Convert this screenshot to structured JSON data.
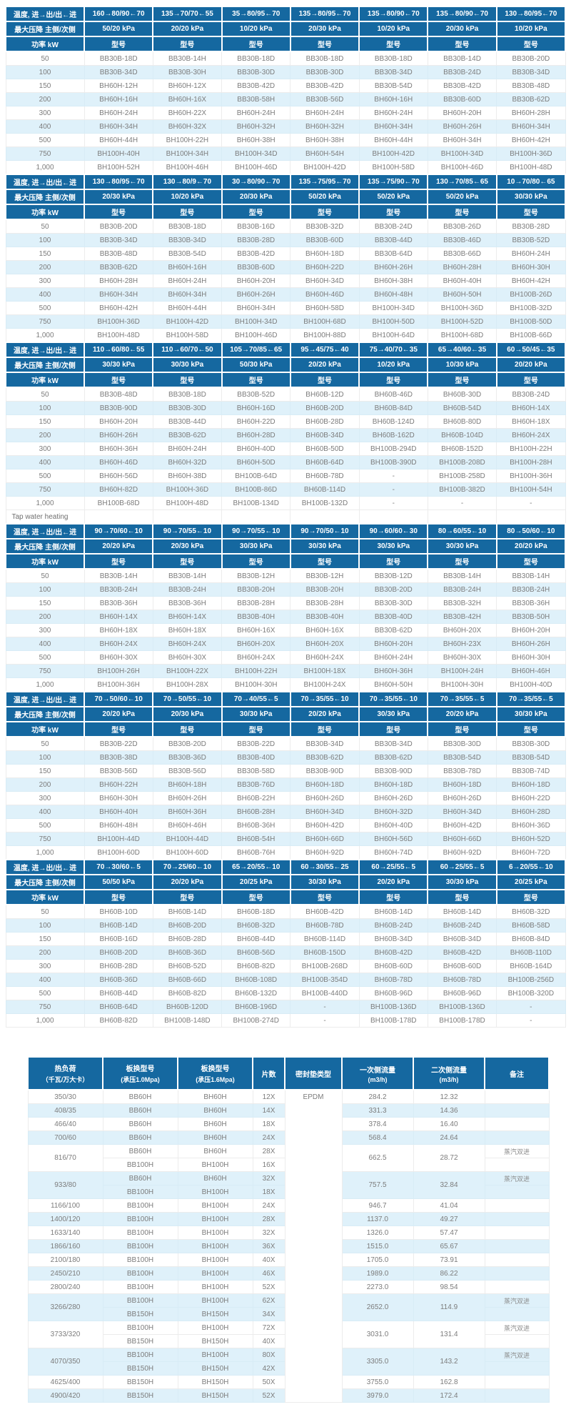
{
  "labels": {
    "temp_header": "温度, 进→出/出←进",
    "pressure_header": "最大压降 主侧/次侧",
    "power_header": "功率 kW",
    "model_header": "型号",
    "tap_water": "Tap water heating",
    "dash": "-"
  },
  "colors": {
    "header_bg": "#1568A0",
    "row_alt_bg": "#DFF1FA",
    "body_text": "#7C7C7C",
    "header_text": "#FFFFFF"
  },
  "power_rows": [
    "50",
    "100",
    "150",
    "200",
    "300",
    "400",
    "500",
    "750",
    "1,000"
  ],
  "sections": [
    {
      "temps": [
        "160→80/90←70",
        "135→70/70←55",
        "35→80/95←70",
        "135→80/95←70",
        "135→80/90←70",
        "135→80/90←70",
        "130→80/95←70"
      ],
      "pressures": [
        "50/20 kPa",
        "20/20 kPa",
        "10/20 kPa",
        "20/30 kPa",
        "10/20 kPa",
        "20/30 kPa",
        "10/20 kPa"
      ],
      "rows": [
        [
          "BB30B-18D",
          "BB30B-14H",
          "BB30B-18D",
          "BB30B-18D",
          "BB30B-18D",
          "BB30B-14D",
          "BB30B-20D"
        ],
        [
          "BB30B-34D",
          "BB30B-30H",
          "BB30B-30D",
          "BB30B-30D",
          "BB30B-34D",
          "BB30B-24D",
          "BB30B-34D"
        ],
        [
          "BH60H-12H",
          "BH60H-12X",
          "BB30B-42D",
          "BB30B-42D",
          "BB30B-54D",
          "BB30B-42D",
          "BB30B-48D"
        ],
        [
          "BH60H-16H",
          "BH60H-16X",
          "BB30B-58H",
          "BB30B-56D",
          "BH60H-16H",
          "BB30B-60D",
          "BB30B-62D"
        ],
        [
          "BH60H-24H",
          "BH60H-22X",
          "BH60H-24H",
          "BH60H-24H",
          "BH60H-24H",
          "BH60H-20H",
          "BH60H-28H"
        ],
        [
          "BH60H-34H",
          "BH60H-32X",
          "BH60H-32H",
          "BH60H-32H",
          "BH60H-34H",
          "BH60H-26H",
          "BH60H-34H"
        ],
        [
          "BH60H-44H",
          "BH100H-22H",
          "BH60H-38H",
          "BH60H-38H",
          "BH60H-44H",
          "BH60H-34H",
          "BH60H-42H"
        ],
        [
          "BH100H-40H",
          "BH100H-34H",
          "BH100H-34D",
          "BH60H-54H",
          "BH100H-42D",
          "BH100H-34D",
          "BH100H-36D"
        ],
        [
          "BH100H-52H",
          "BH100H-46H",
          "BH100H-46D",
          "BH100H-42D",
          "BH100H-58D",
          "BH100H-46D",
          "BH100H-48D"
        ]
      ]
    },
    {
      "temps": [
        "130→80/95←70",
        "130→80/9←70",
        "30→80/90←70",
        "135→75/95←70",
        "135→75/90←70",
        "130→70/85←65",
        "10→70/80←65"
      ],
      "pressures": [
        "20/30 kPa",
        "10/20 kPa",
        "20/30 kPa",
        "50/20 kPa",
        "50/20 kPa",
        "50/20 kPa",
        "30/30 kPa"
      ],
      "rows": [
        [
          "BB30B-20D",
          "BB30B-18D",
          "BB30B-16D",
          "BB30B-32D",
          "BB30B-24D",
          "BB30B-26D",
          "BB30B-28D"
        ],
        [
          "BB30B-34D",
          "BB30B-34D",
          "BB30B-28D",
          "BB30B-60D",
          "BB30B-44D",
          "BB30B-46D",
          "BB30B-52D"
        ],
        [
          "BB30B-48D",
          "BB30B-54D",
          "BB30B-42D",
          "BH60H-18D",
          "BB30B-64D",
          "BB30B-66D",
          "BH60H-24H"
        ],
        [
          "BB30B-62D",
          "BH60H-16H",
          "BB30B-60D",
          "BH60H-22D",
          "BH60H-26H",
          "BH60H-28H",
          "BH60H-30H"
        ],
        [
          "BH60H-28H",
          "BH60H-24H",
          "BH60H-20H",
          "BH60H-34D",
          "BH60H-38H",
          "BH60H-40H",
          "BH60H-42H"
        ],
        [
          "BH60H-34H",
          "BH60H-34H",
          "BH60H-26H",
          "BH60H-46D",
          "BH60H-48H",
          "BH60H-50H",
          "BH100B-26D"
        ],
        [
          "BH60H-42H",
          "BH60H-44H",
          "BH60H-34H",
          "BH60H-58D",
          "BH100H-34D",
          "BH100H-36D",
          "BH100B-32D"
        ],
        [
          "BH100H-36D",
          "BH100H-42D",
          "BH100H-34D",
          "BH100H-68D",
          "BH100H-50D",
          "BH100H-52D",
          "BH100B-50D"
        ],
        [
          "BH100H-48D",
          "BH100H-58D",
          "BH100H-46D",
          "BH100H-88D",
          "BH100H-64D",
          "BH100H-68D",
          "BH100B-66D"
        ]
      ]
    },
    {
      "temps": [
        "110→60/80←55",
        "110→60/70←50",
        "105→70/85←65",
        "95→45/75←40",
        "75→40/70←35",
        "65→40/60←35",
        "60→50/45←35"
      ],
      "pressures": [
        "30/30 kPa",
        "30/30 kPa",
        "50/30 kPa",
        "20/20 kPa",
        "10/20 kPa",
        "10/30 kPa",
        "20/20 kPa"
      ],
      "rows": [
        [
          "BB30B-48D",
          "BB30B-18D",
          "BB30B-52D",
          "BH60B-12D",
          "BH60B-46D",
          "BH60B-30D",
          "BB30B-24D"
        ],
        [
          "BB30B-90D",
          "BB30B-30D",
          "BH60H-16D",
          "BH60B-20D",
          "BH60B-84D",
          "BH60B-54D",
          "BH60H-14X"
        ],
        [
          "BH60H-20H",
          "BB30B-44D",
          "BH60H-22D",
          "BH60B-28D",
          "BH60B-124D",
          "BH60B-80D",
          "BH60H-18X"
        ],
        [
          "BH60H-26H",
          "BB30B-62D",
          "BH60H-28D",
          "BH60B-34D",
          "BH60B-162D",
          "BH60B-104D",
          "BH60H-24X"
        ],
        [
          "BH60H-36H",
          "BH60H-24H",
          "BH60H-40D",
          "BH60B-50D",
          "BH100B-294D",
          "BH60B-152D",
          "BH100H-22H"
        ],
        [
          "BH60H-46D",
          "BH60H-32D",
          "BH60H-50D",
          "BH60B-64D",
          "BH100B-390D",
          "BH100B-208D",
          "BH100H-28H"
        ],
        [
          "BH60H-56D",
          "BH60H-38D",
          "BH100B-64D",
          "BH60B-78D",
          "-",
          "BH100B-258D",
          "BH100H-36H"
        ],
        [
          "BH60H-82D",
          "BH100H-36D",
          "BH100B-86D",
          "BH60B-114D",
          "-",
          "BH100B-382D",
          "BH100H-54H"
        ],
        [
          "BH100B-68D",
          "BH100H-48D",
          "BH100B-134D",
          "BH100B-132D",
          "-",
          "-",
          "-"
        ]
      ]
    },
    {
      "temps": [
        "90→70/60←10",
        "90→70/55←10",
        "90→70/55←10",
        "90→70/50←10",
        "90→60/60←30",
        "80→60/55←10",
        "80→50/60←10"
      ],
      "pressures": [
        "20/20 kPa",
        "20/30 kPa",
        "30/30 kPa",
        "30/30 kPa",
        "30/30 kPa",
        "30/30 kPa",
        "20/20 kPa"
      ],
      "rows": [
        [
          "BB30B-14H",
          "BB30B-14H",
          "BB30B-12H",
          "BB30B-12H",
          "BB30B-12D",
          "BB30B-14H",
          "BB30B-14H"
        ],
        [
          "BB30B-24H",
          "BB30B-24H",
          "BB30B-20H",
          "BB30B-20H",
          "BB30B-20D",
          "BB30B-24H",
          "BB30B-24H"
        ],
        [
          "BB30B-36H",
          "BB30B-36H",
          "BB30B-28H",
          "BB30B-28H",
          "BB30B-30D",
          "BB30B-32H",
          "BB30B-36H"
        ],
        [
          "BH60H-14X",
          "BH60H-14X",
          "BB30B-40H",
          "BB30B-40H",
          "BB30B-40D",
          "BB30B-42H",
          "BB30B-50H"
        ],
        [
          "BH60H-18X",
          "BH60H-18X",
          "BH60H-16X",
          "BH60H-16X",
          "BB30B-62D",
          "BH60H-20X",
          "BH60H-20H"
        ],
        [
          "BH60H-24X",
          "BH60H-24X",
          "BH60H-20X",
          "BH60H-20X",
          "BH60H-20H",
          "BH60H-23X",
          "BH60H-26H"
        ],
        [
          "BH60H-30X",
          "BH60H-30X",
          "BH60H-24X",
          "BH60H-24X",
          "BH60H-24H",
          "BH60H-30X",
          "BH60H-30H"
        ],
        [
          "BH100H-26H",
          "BH100H-22X",
          "BH100H-22H",
          "BH100H-18X",
          "BH60H-36H",
          "BH100H-24H",
          "BH60H-46H"
        ],
        [
          "BH100H-36H",
          "BH100H-28X",
          "BH100H-30H",
          "BH100H-24X",
          "BH60H-50H",
          "BH100H-30H",
          "BH100H-40D"
        ]
      ]
    },
    {
      "temps": [
        "70→50/60←10",
        "70→50/55←10",
        "70→40/55←5",
        "70→35/55←10",
        "70→35/55←10",
        "70→35/55←5",
        "70→35/55←5"
      ],
      "pressures": [
        "20/20 kPa",
        "20/30 kPa",
        "30/30 kPa",
        "20/20 kPa",
        "30/30 kPa",
        "20/20 kPa",
        "30/30 kPa"
      ],
      "rows": [
        [
          "BB30B-22D",
          "BB30B-20D",
          "BB30B-22D",
          "BB30B-34D",
          "BB30B-34D",
          "BB30B-30D",
          "BB30B-30D"
        ],
        [
          "BB30B-38D",
          "BB30B-36D",
          "BB30B-40D",
          "BB30B-62D",
          "BB30B-62D",
          "BB30B-54D",
          "BB30B-54D"
        ],
        [
          "BB30B-56D",
          "BB30B-56D",
          "BB30B-58D",
          "BB30B-90D",
          "BB30B-90D",
          "BB30B-78D",
          "BB30B-74D"
        ],
        [
          "BH60H-22H",
          "BH60H-18H",
          "BB30B-76D",
          "BH60H-18D",
          "BH60H-18D",
          "BH60H-18D",
          "BH60H-18D"
        ],
        [
          "BH60H-30H",
          "BH60H-26H",
          "BH60B-22H",
          "BH60H-26D",
          "BH60H-26D",
          "BH60H-26D",
          "BH60H-22D"
        ],
        [
          "BH60H-40H",
          "BH60H-36H",
          "BH60B-28H",
          "BH60H-34D",
          "BH60H-32D",
          "BH60H-34D",
          "BH60H-28D"
        ],
        [
          "BH60H-48H",
          "BH60H-46H",
          "BH60B-36H",
          "BH60H-42D",
          "BH60H-40D",
          "BH60H-42D",
          "BH60H-36D"
        ],
        [
          "BH100H-44D",
          "BH100H-44D",
          "BH60B-54H",
          "BH60H-66D",
          "BH60H-56D",
          "BH60H-66D",
          "BH60H-52D"
        ],
        [
          "BH100H-60D",
          "BH100H-60D",
          "BH60B-76H",
          "BH60H-92D",
          "BH60H-74D",
          "BH60H-92D",
          "BH60H-72D"
        ]
      ]
    },
    {
      "temps": [
        "70→30/60←5",
        "70→25/60←10",
        "65→20/55←10",
        "60→30/55←25",
        "60→25/55←5",
        "60→25/55←5",
        "6→20/55←10"
      ],
      "pressures": [
        "50/50 kPa",
        "20/20 kPa",
        "20/25 kPa",
        "30/30 kPa",
        "20/20 kPa",
        "30/30 kPa",
        "20/25 kPa"
      ],
      "rows": [
        [
          "BH60B-10D",
          "BH60B-14D",
          "BH60B-18D",
          "BH60B-42D",
          "BH60B-14D",
          "BH60B-14D",
          "BH60B-32D"
        ],
        [
          "BH60B-14D",
          "BH60B-20D",
          "BH60B-32D",
          "BH60B-78D",
          "BH60B-24D",
          "BH60B-24D",
          "BH60B-58D"
        ],
        [
          "BH60B-16D",
          "BH60B-28D",
          "BH60B-44D",
          "BH60B-114D",
          "BH60B-34D",
          "BH60B-34D",
          "BH60B-84D"
        ],
        [
          "BH60B-20D",
          "BH60B-36D",
          "BH60B-56D",
          "BH60B-150D",
          "BH60B-42D",
          "BH60B-42D",
          "BH60B-110D"
        ],
        [
          "BH60B-28D",
          "BH60B-52D",
          "BH60B-82D",
          "BH100B-268D",
          "BH60B-60D",
          "BH60B-60D",
          "BH60B-164D"
        ],
        [
          "BH60B-36D",
          "BH60B-66D",
          "BH60B-108D",
          "BH100B-354D",
          "BH60B-78D",
          "BH60B-78D",
          "BH100B-256D"
        ],
        [
          "BH60B-44D",
          "BH60B-82D",
          "BH60B-132D",
          "BH100B-440D",
          "BH60B-96D",
          "BH60B-96D",
          "BH100B-320D"
        ],
        [
          "BH60B-64D",
          "BH60B-120D",
          "BH60B-196D",
          "-",
          "BH100B-136D",
          "BH100B-136D",
          "-"
        ],
        [
          "BH60B-82D",
          "BH100B-148D",
          "BH100B-274D",
          "-",
          "BH100B-178D",
          "BH100B-178D",
          "-"
        ]
      ]
    }
  ],
  "flow_table": {
    "headers": [
      {
        "main": "热负荷",
        "sub": "（千瓦/万大卡）"
      },
      {
        "main": "板换型号",
        "sub": "(承压1.0Mpa)"
      },
      {
        "main": "板换型号",
        "sub": "(承压1.6Mpa)"
      },
      {
        "main": "片数",
        "sub": ""
      },
      {
        "main": "密封垫类型",
        "sub": ""
      },
      {
        "main": "一次侧流量",
        "sub": "(m3/h)"
      },
      {
        "main": "二次侧流量",
        "sub": "(m3/h)"
      },
      {
        "main": "备注",
        "sub": ""
      }
    ],
    "gasket": "EPDM",
    "groups": [
      {
        "load": "350/30",
        "sub": [
          [
            "BB60H",
            "BH60H",
            "12X"
          ]
        ],
        "flow1": "284.2",
        "flow2": "12.32",
        "remark": ""
      },
      {
        "load": "408/35",
        "sub": [
          [
            "BB60H",
            "BH60H",
            "14X"
          ]
        ],
        "flow1": "331.3",
        "flow2": "14.36",
        "remark": ""
      },
      {
        "load": "466/40",
        "sub": [
          [
            "BB60H",
            "BH60H",
            "18X"
          ]
        ],
        "flow1": "378.4",
        "flow2": "16.40",
        "remark": ""
      },
      {
        "load": "700/60",
        "sub": [
          [
            "BB60H",
            "BH60H",
            "24X"
          ]
        ],
        "flow1": "568.4",
        "flow2": "24.64",
        "remark": ""
      },
      {
        "load": "816/70",
        "sub": [
          [
            "BB60H",
            "BH60H",
            "28X"
          ],
          [
            "BB100H",
            "BH100H",
            "16X"
          ]
        ],
        "flow1": "662.5",
        "flow2": "28.72",
        "remark": "蒸汽双进"
      },
      {
        "load": "933/80",
        "sub": [
          [
            "BB60H",
            "BH60H",
            "32X"
          ],
          [
            "BB100H",
            "BH100H",
            "18X"
          ]
        ],
        "flow1": "757.5",
        "flow2": "32.84",
        "remark": "蒸汽双进"
      },
      {
        "load": "1166/100",
        "sub": [
          [
            "BB100H",
            "BH100H",
            "24X"
          ]
        ],
        "flow1": "946.7",
        "flow2": "41.04",
        "remark": ""
      },
      {
        "load": "1400/120",
        "sub": [
          [
            "BB100H",
            "BH100H",
            "28X"
          ]
        ],
        "flow1": "1137.0",
        "flow2": "49.27",
        "remark": ""
      },
      {
        "load": "1633/140",
        "sub": [
          [
            "BB100H",
            "BH100H",
            "32X"
          ]
        ],
        "flow1": "1326.0",
        "flow2": "57.47",
        "remark": ""
      },
      {
        "load": "1866/160",
        "sub": [
          [
            "BB100H",
            "BH100H",
            "36X"
          ]
        ],
        "flow1": "1515.0",
        "flow2": "65.67",
        "remark": ""
      },
      {
        "load": "2100/180",
        "sub": [
          [
            "BB100H",
            "BH100H",
            "40X"
          ]
        ],
        "flow1": "1705.0",
        "flow2": "73.91",
        "remark": ""
      },
      {
        "load": "2450/210",
        "sub": [
          [
            "BB100H",
            "BH100H",
            "46X"
          ]
        ],
        "flow1": "1989.0",
        "flow2": "86.22",
        "remark": ""
      },
      {
        "load": "2800/240",
        "sub": [
          [
            "BB100H",
            "BH100H",
            "52X"
          ]
        ],
        "flow1": "2273.0",
        "flow2": "98.54",
        "remark": ""
      },
      {
        "load": "3266/280",
        "sub": [
          [
            "BB100H",
            "BH100H",
            "62X"
          ],
          [
            "BB150H",
            "BH150H",
            "34X"
          ]
        ],
        "flow1": "2652.0",
        "flow2": "114.9",
        "remark": "蒸汽双进"
      },
      {
        "load": "3733/320",
        "sub": [
          [
            "BB100H",
            "BH100H",
            "72X"
          ],
          [
            "BB150H",
            "BH150H",
            "40X"
          ]
        ],
        "flow1": "3031.0",
        "flow2": "131.4",
        "remark": "蒸汽双进"
      },
      {
        "load": "4070/350",
        "sub": [
          [
            "BB100H",
            "BH100H",
            "80X"
          ],
          [
            "BB150H",
            "BH150H",
            "42X"
          ]
        ],
        "flow1": "3305.0",
        "flow2": "143.2",
        "remark": "蒸汽双进"
      },
      {
        "load": "4625/400",
        "sub": [
          [
            "BB150H",
            "BH150H",
            "50X"
          ]
        ],
        "flow1": "3755.0",
        "flow2": "162.8",
        "remark": ""
      },
      {
        "load": "4900/420",
        "sub": [
          [
            "BB150H",
            "BH150H",
            "52X"
          ]
        ],
        "flow1": "3979.0",
        "flow2": "172.4",
        "remark": ""
      }
    ]
  }
}
